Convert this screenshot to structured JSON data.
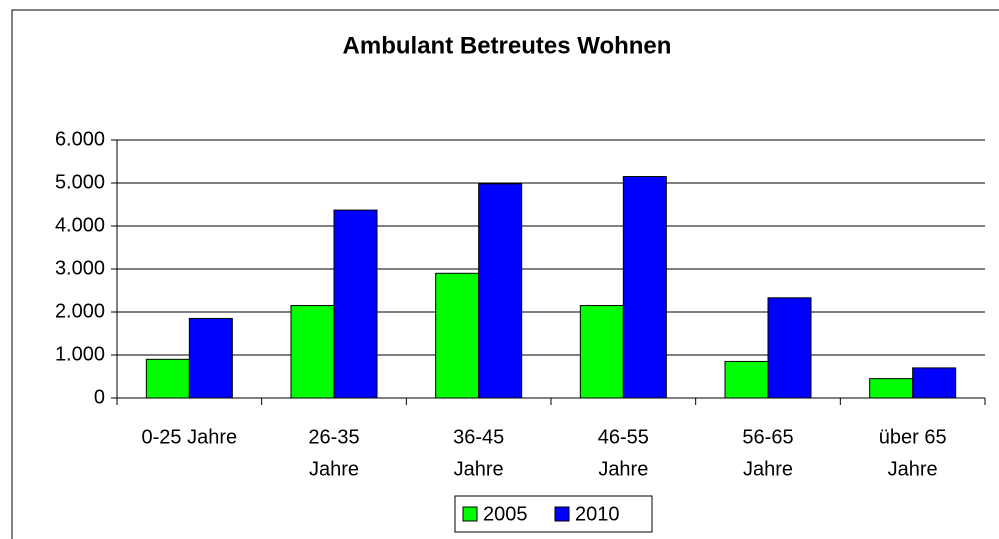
{
  "chart_data": {
    "type": "bar",
    "title": "Ambulant Betreutes Wohnen",
    "categories": [
      [
        "0-25 Jahre"
      ],
      [
        "26-35",
        "Jahre"
      ],
      [
        "36-45",
        "Jahre"
      ],
      [
        "46-55",
        "Jahre"
      ],
      [
        "56-65",
        "Jahre"
      ],
      [
        "über 65",
        "Jahre"
      ]
    ],
    "series": [
      {
        "name": "2005",
        "color": "#00ff00",
        "values": [
          900,
          2150,
          2900,
          2150,
          850,
          450
        ]
      },
      {
        "name": "2010",
        "color": "#0000ff",
        "values": [
          1850,
          4370,
          4980,
          5150,
          2330,
          700
        ]
      }
    ],
    "ylim": [
      0,
      6000
    ],
    "yticks": [
      0,
      {
        "value": 1000,
        "label": "1.000"
      },
      {
        "value": 2000,
        "label": "2.000"
      },
      {
        "value": 3000,
        "label": "3.000"
      },
      {
        "value": 4000,
        "label": "4.000"
      },
      {
        "value": 5000,
        "label": "5.000"
      },
      {
        "value": 6000,
        "label": "6.000"
      }
    ],
    "grid": true,
    "legend": "bottom"
  }
}
